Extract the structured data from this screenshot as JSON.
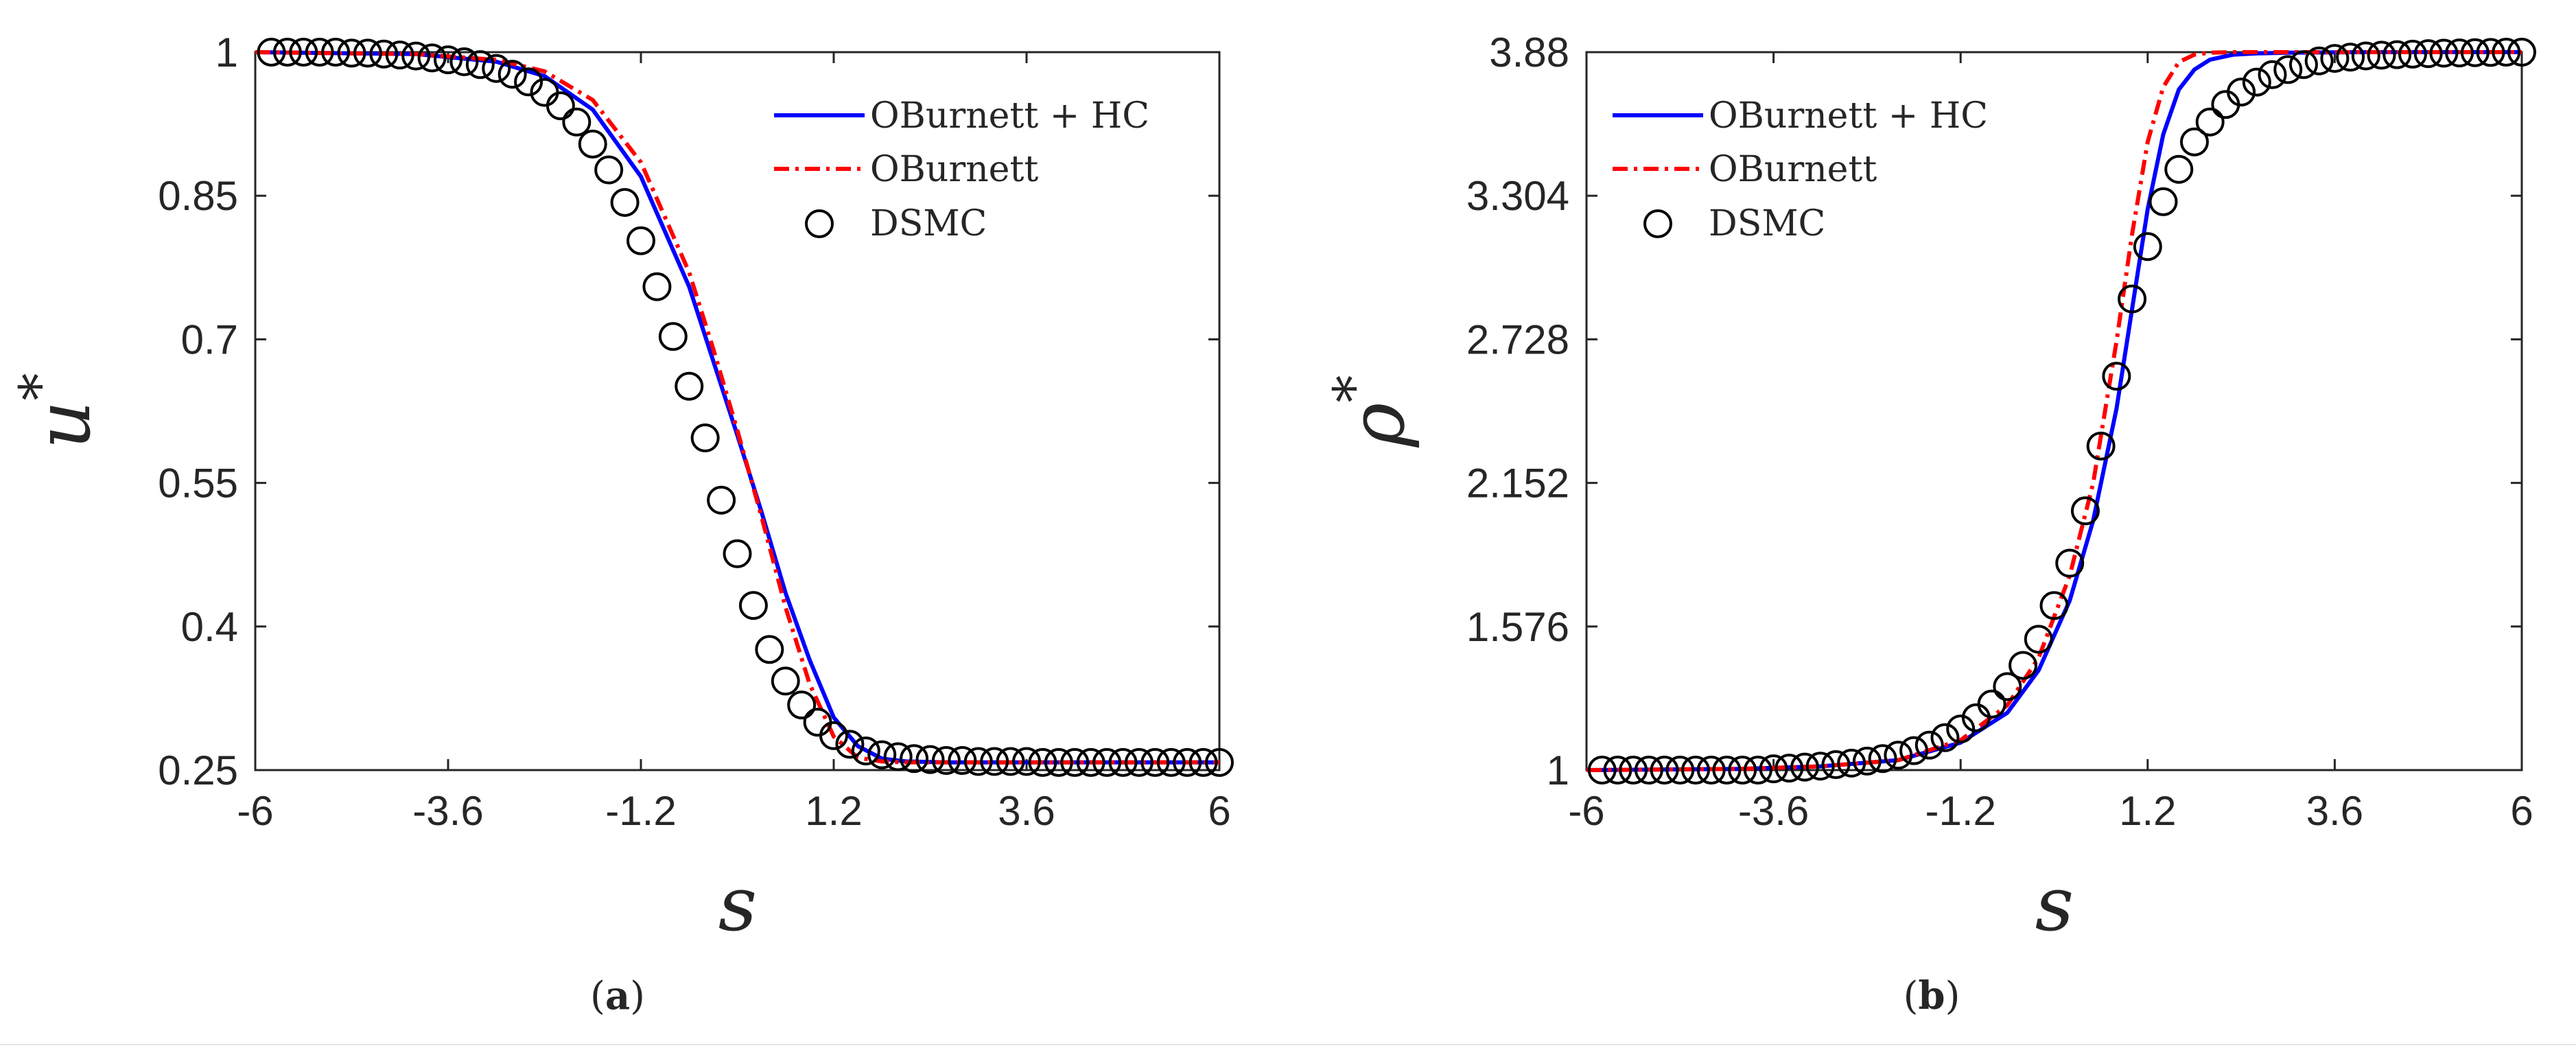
{
  "chart_data": [
    {
      "type": "line",
      "panel": "a",
      "caption": {
        "open": "(",
        "letter": "a",
        "close": ")"
      },
      "xlabel": "s",
      "ylabel": "u",
      "ylabel_sup": "*",
      "xlim": [
        -6,
        6
      ],
      "ylim": [
        0.25,
        1
      ],
      "xticks": [
        -6,
        -3.6,
        -1.2,
        1.2,
        3.6,
        6
      ],
      "yticks": [
        0.25,
        0.4,
        0.55,
        0.7,
        0.85,
        1
      ],
      "xtick_labels": [
        "-6",
        "-3.6",
        "-1.2",
        "1.2",
        "3.6",
        "6"
      ],
      "ytick_labels": [
        "0.25",
        "0.4",
        "0.55",
        "0.7",
        "0.85",
        "1"
      ],
      "legend_position": "top-right",
      "series": [
        {
          "name": "OBurnett + HC",
          "style": "solid",
          "color": "#0000ff",
          "x": [
            -6,
            -4,
            -3,
            -2.4,
            -1.8,
            -1.2,
            -0.6,
            0,
            0.3,
            0.6,
            0.9,
            1.2,
            1.5,
            1.8,
            2.1,
            2.6,
            3.2,
            4,
            6
          ],
          "y": [
            1,
            0.998,
            0.99,
            0.975,
            0.94,
            0.87,
            0.755,
            0.6,
            0.52,
            0.435,
            0.365,
            0.305,
            0.275,
            0.262,
            0.259,
            0.258,
            0.258,
            0.258,
            0.258
          ]
        },
        {
          "name": "OBurnett",
          "style": "dashdot",
          "color": "#ff0000",
          "x": [
            -6,
            -4,
            -3,
            -2.4,
            -1.8,
            -1.2,
            -0.6,
            -0.3,
            0,
            0.3,
            0.6,
            0.9,
            1.2,
            1.5,
            1.8,
            2.1,
            2.6,
            3.2,
            6
          ],
          "y": [
            1,
            0.998,
            0.992,
            0.98,
            0.95,
            0.885,
            0.77,
            0.69,
            0.605,
            0.515,
            0.42,
            0.34,
            0.285,
            0.263,
            0.259,
            0.258,
            0.258,
            0.258,
            0.258
          ]
        },
        {
          "name": "DSMC",
          "style": "markers",
          "color": "#000000",
          "x": [
            -5.8,
            -5.6,
            -5.4,
            -5.2,
            -5.0,
            -4.8,
            -4.6,
            -4.4,
            -4.2,
            -4.0,
            -3.8,
            -3.6,
            -3.4,
            -3.2,
            -3.0,
            -2.8,
            -2.6,
            -2.4,
            -2.2,
            -2.0,
            -1.8,
            -1.6,
            -1.4,
            -1.2,
            -1.0,
            -0.8,
            -0.6,
            -0.4,
            -0.2,
            0.0,
            0.2,
            0.4,
            0.6,
            0.8,
            1.0,
            1.2,
            1.4,
            1.6,
            1.8,
            2.0,
            2.2,
            2.4,
            2.6,
            2.8,
            3.0,
            3.2,
            3.4,
            3.6,
            3.8,
            4.0,
            4.2,
            4.4,
            4.6,
            4.8,
            5.0,
            5.2,
            5.4,
            5.6,
            5.8,
            6.0
          ],
          "y": [
            1.0,
            1.0,
            1.0,
            1.0,
            1.0,
            0.999,
            0.999,
            0.998,
            0.997,
            0.996,
            0.994,
            0.992,
            0.99,
            0.987,
            0.983,
            0.977,
            0.969,
            0.958,
            0.944,
            0.927,
            0.904,
            0.877,
            0.843,
            0.803,
            0.755,
            0.703,
            0.651,
            0.597,
            0.532,
            0.476,
            0.422,
            0.376,
            0.343,
            0.318,
            0.3,
            0.286,
            0.277,
            0.27,
            0.266,
            0.264,
            0.262,
            0.261,
            0.26,
            0.26,
            0.259,
            0.259,
            0.259,
            0.259,
            0.258,
            0.258,
            0.258,
            0.258,
            0.258,
            0.258,
            0.258,
            0.258,
            0.258,
            0.258,
            0.258,
            0.258
          ]
        }
      ]
    },
    {
      "type": "line",
      "panel": "b",
      "caption": {
        "open": "(",
        "letter": "b",
        "close": ")"
      },
      "xlabel": "s",
      "ylabel": "ρ",
      "ylabel_sup": "*",
      "xlim": [
        -6,
        6
      ],
      "ylim": [
        1,
        3.88
      ],
      "xticks": [
        -6,
        -3.6,
        -1.2,
        1.2,
        3.6,
        6
      ],
      "yticks": [
        1,
        1.576,
        2.152,
        2.728,
        3.304,
        3.88
      ],
      "xtick_labels": [
        "-6",
        "-3.6",
        "-1.2",
        "1.2",
        "3.6",
        "6"
      ],
      "ytick_labels": [
        "1",
        "1.576",
        "2.152",
        "2.728",
        "3.304",
        "3.88"
      ],
      "legend_position": "top-left",
      "series": [
        {
          "name": "OBurnett + HC",
          "style": "solid",
          "color": "#0000ff",
          "x": [
            -6,
            -4,
            -3,
            -2,
            -1.2,
            -0.6,
            -0.2,
            0.2,
            0.5,
            0.8,
            1.0,
            1.2,
            1.4,
            1.6,
            1.8,
            2.0,
            2.3,
            2.6,
            3.0,
            4,
            6
          ],
          "y": [
            1,
            1.005,
            1.015,
            1.04,
            1.11,
            1.23,
            1.4,
            1.68,
            2.0,
            2.45,
            2.85,
            3.25,
            3.55,
            3.73,
            3.81,
            3.85,
            3.87,
            3.875,
            3.878,
            3.88,
            3.88
          ]
        },
        {
          "name": "OBurnett",
          "style": "dashdot",
          "color": "#ff0000",
          "x": [
            -6,
            -4,
            -3,
            -2,
            -1.2,
            -0.6,
            -0.2,
            0.2,
            0.5,
            0.8,
            1.0,
            1.2,
            1.4,
            1.6,
            1.8,
            2.0,
            2.3,
            2.6,
            3.0,
            4,
            6
          ],
          "y": [
            1,
            1.005,
            1.015,
            1.04,
            1.12,
            1.26,
            1.45,
            1.78,
            2.15,
            2.72,
            3.15,
            3.52,
            3.74,
            3.84,
            3.87,
            3.878,
            3.88,
            3.88,
            3.88,
            3.88,
            3.88
          ]
        },
        {
          "name": "DSMC",
          "style": "markers",
          "color": "#000000",
          "x": [
            -5.8,
            -5.6,
            -5.4,
            -5.2,
            -5.0,
            -4.8,
            -4.6,
            -4.4,
            -4.2,
            -4.0,
            -3.8,
            -3.6,
            -3.4,
            -3.2,
            -3.0,
            -2.8,
            -2.6,
            -2.4,
            -2.2,
            -2.0,
            -1.8,
            -1.6,
            -1.4,
            -1.2,
            -1.0,
            -0.8,
            -0.6,
            -0.4,
            -0.2,
            0.0,
            0.2,
            0.4,
            0.6,
            0.8,
            1.0,
            1.2,
            1.4,
            1.6,
            1.8,
            2.0,
            2.2,
            2.4,
            2.6,
            2.8,
            3.0,
            3.2,
            3.4,
            3.6,
            3.8,
            4.0,
            4.2,
            4.4,
            4.6,
            4.8,
            5.0,
            5.2,
            5.4,
            5.6,
            5.8,
            6.0
          ],
          "y": [
            1.0,
            1.0,
            1.0,
            1.0,
            1.0,
            1.0,
            1.0,
            1.0,
            1.0,
            1.0,
            1.0,
            1.005,
            1.008,
            1.012,
            1.016,
            1.022,
            1.028,
            1.036,
            1.046,
            1.06,
            1.078,
            1.1,
            1.13,
            1.165,
            1.21,
            1.265,
            1.335,
            1.42,
            1.525,
            1.66,
            1.83,
            2.04,
            2.3,
            2.58,
            2.89,
            3.1,
            3.28,
            3.41,
            3.52,
            3.6,
            3.67,
            3.72,
            3.76,
            3.79,
            3.81,
            3.83,
            3.845,
            3.855,
            3.86,
            3.865,
            3.868,
            3.87,
            3.872,
            3.874,
            3.876,
            3.877,
            3.878,
            3.879,
            3.88,
            3.88
          ]
        }
      ]
    }
  ]
}
